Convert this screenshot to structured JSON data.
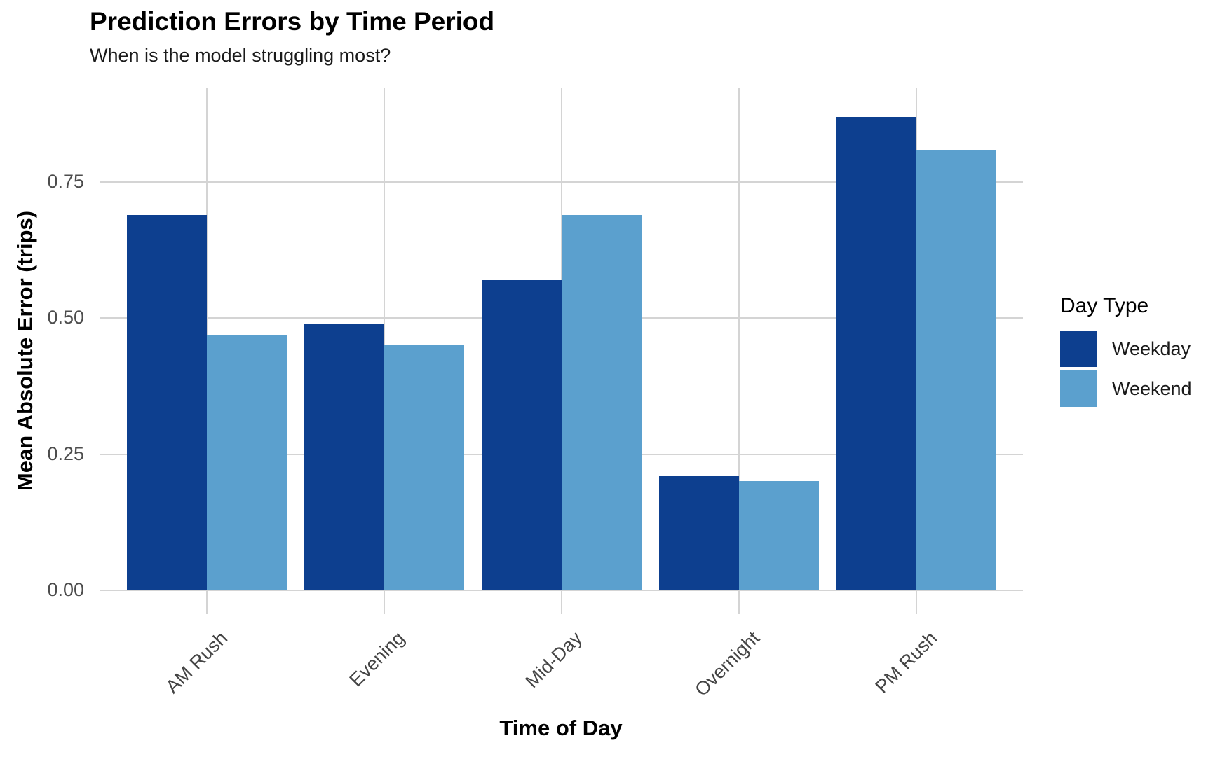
{
  "title": "Prediction Errors by Time Period",
  "subtitle": "When is the model struggling most?",
  "chart_data": {
    "type": "bar",
    "categories": [
      "AM Rush",
      "Evening",
      "Mid-Day",
      "Overnight",
      "PM Rush"
    ],
    "series": [
      {
        "name": "Weekday",
        "color": "#0d3f8f",
        "values": [
          0.69,
          0.49,
          0.57,
          0.21,
          0.87
        ]
      },
      {
        "name": "Weekend",
        "color": "#5ba0ce",
        "values": [
          0.47,
          0.45,
          0.69,
          0.2,
          0.81
        ]
      }
    ],
    "title": "Prediction Errors by Time Period",
    "subtitle": "When is the model struggling most?",
    "xlabel": "Time of Day",
    "ylabel": "Mean Absolute Error (trips)",
    "y_tick_labels": [
      "0.00",
      "0.25",
      "0.50",
      "0.75"
    ],
    "y_tick_values": [
      0,
      0.25,
      0.5,
      0.75
    ],
    "ylim": [
      -0.044,
      0.924
    ],
    "grid": "on",
    "legend": {
      "title": "Day Type",
      "position": "right"
    }
  },
  "colors": {
    "weekday": "#0d3f8f",
    "weekend": "#5ba0ce"
  }
}
